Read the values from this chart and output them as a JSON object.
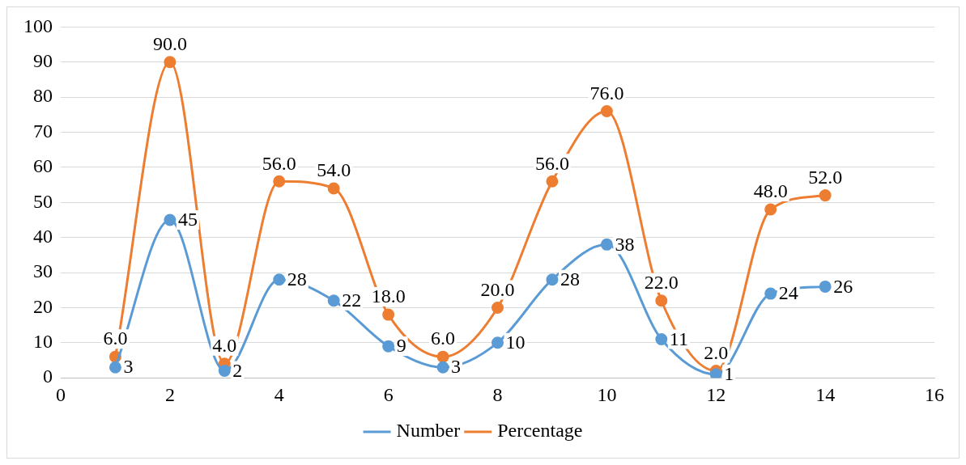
{
  "chart_data": {
    "type": "line",
    "x": [
      1,
      2,
      3,
      4,
      5,
      6,
      7,
      8,
      9,
      10,
      11,
      12,
      13,
      14
    ],
    "series": [
      {
        "name": "Number",
        "color": "#5b9bd5",
        "values": [
          3,
          45,
          2,
          28,
          22,
          9,
          3,
          10,
          28,
          38,
          11,
          1,
          24,
          26
        ],
        "value_labels": [
          "3",
          "45",
          "2",
          "28",
          "22",
          "9",
          "3",
          "10",
          "28",
          "38",
          "11",
          "1",
          "24",
          "26"
        ]
      },
      {
        "name": "Percentage",
        "color": "#ed7d31",
        "values": [
          6,
          90,
          4,
          56,
          54,
          18,
          6,
          20,
          56,
          76,
          22,
          2,
          48,
          52
        ],
        "value_labels": [
          "6.0",
          "90.0",
          "4.0",
          "56.0",
          "54.0",
          "18.0",
          "6.0",
          "20.0",
          "56.0",
          "76.0",
          "22.0",
          "2.0",
          "48.0",
          "52.0"
        ]
      }
    ],
    "xlim": [
      0,
      16
    ],
    "xticks": [
      0,
      2,
      4,
      6,
      8,
      10,
      12,
      14,
      16
    ],
    "ylim": [
      0,
      100
    ],
    "yticks": [
      0,
      10,
      20,
      30,
      40,
      50,
      60,
      70,
      80,
      90,
      100
    ],
    "grid": "y",
    "legend": "bottom",
    "marker": "circle",
    "line_style": "solid"
  }
}
